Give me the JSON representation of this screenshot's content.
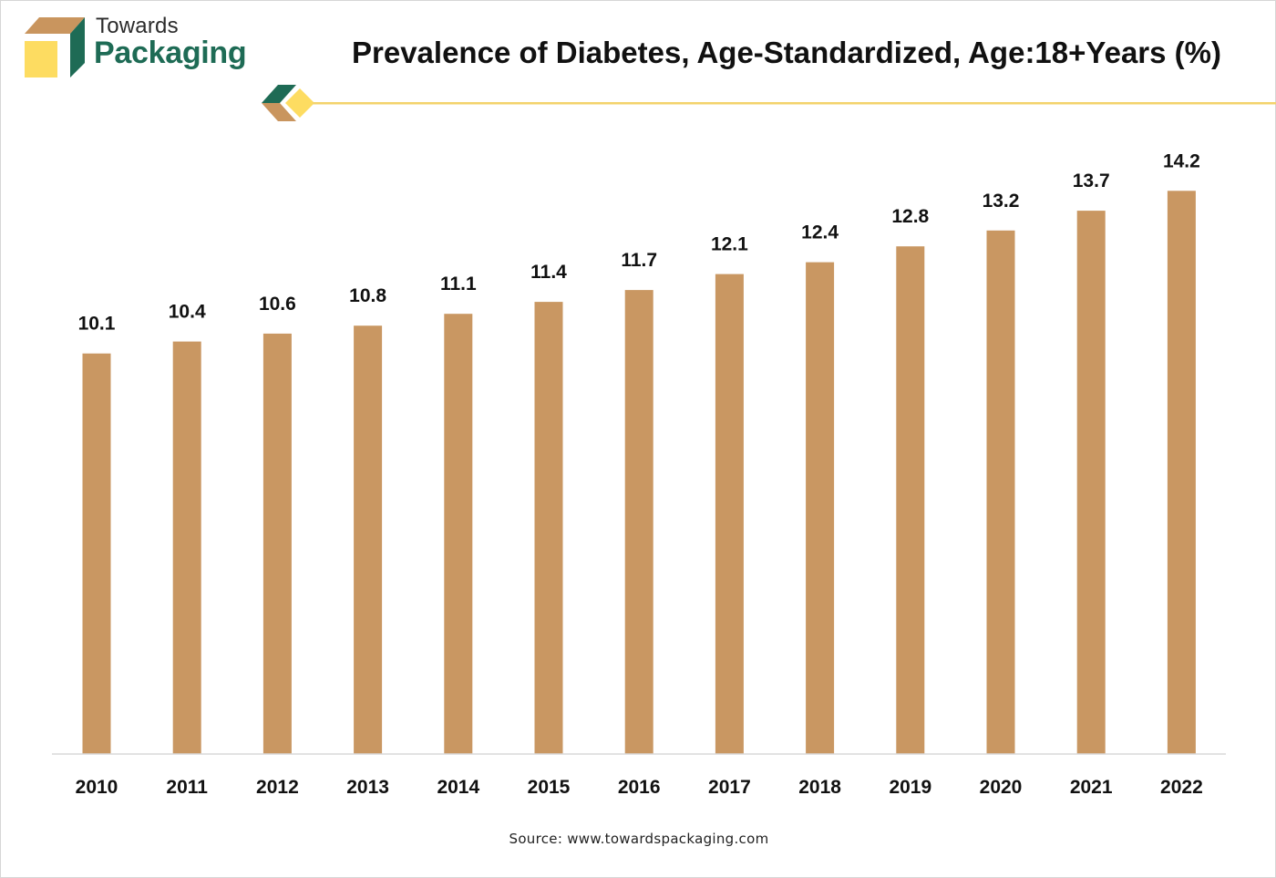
{
  "brand": {
    "line1": "Towards",
    "line2": "Packaging"
  },
  "colors": {
    "bar": "#c99762",
    "brand_green": "#1e6b55",
    "brand_yellow": "#fddc61",
    "brand_tan": "#c9955e",
    "rule": "#f3d36b"
  },
  "chart_data": {
    "type": "bar",
    "title": "Prevalence of Diabetes, Age-Standardized, Age:18+Years (%)",
    "xlabel": "",
    "ylabel": "",
    "categories": [
      "2010",
      "2011",
      "2012",
      "2013",
      "2014",
      "2015",
      "2016",
      "2017",
      "2018",
      "2019",
      "2020",
      "2021",
      "2022"
    ],
    "values": [
      10.1,
      10.4,
      10.6,
      10.8,
      11.1,
      11.4,
      11.7,
      12.1,
      12.4,
      12.8,
      13.2,
      13.7,
      14.2
    ],
    "value_labels": [
      "10.1",
      "10.4",
      "10.6",
      "10.8",
      "11.1",
      "11.4",
      "11.7",
      "12.1",
      "12.4",
      "12.8",
      "13.2",
      "13.7",
      "14.2"
    ],
    "ylim": [
      0,
      15
    ],
    "grid": false,
    "legend": "none"
  },
  "source": "Source: www.towardspackaging.com"
}
